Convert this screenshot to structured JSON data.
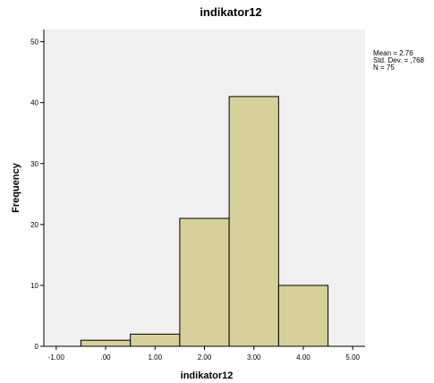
{
  "chart_data": {
    "type": "bar",
    "title": "indikator12",
    "xlabel": "indikator12",
    "ylabel": "Frequency",
    "xlim": [
      -1.25,
      5.25
    ],
    "ylim": [
      0,
      52
    ],
    "x_ticks": [
      -1,
      0,
      1,
      2,
      3,
      4,
      5
    ],
    "x_tick_labels": [
      "-1.00",
      ".00",
      "1.00",
      "2.00",
      "3.00",
      "4.00",
      "5.00"
    ],
    "y_ticks": [
      0,
      10,
      20,
      30,
      40,
      50
    ],
    "y_tick_labels": [
      "0",
      "10",
      "20",
      "30",
      "40",
      "50"
    ],
    "bin_width": 1,
    "bins": [
      {
        "center": 0,
        "value": 1
      },
      {
        "center": 1,
        "value": 2
      },
      {
        "center": 2,
        "value": 21
      },
      {
        "center": 3,
        "value": 41
      },
      {
        "center": 4,
        "value": 10
      }
    ],
    "stats": {
      "mean": "Mean = 2.76",
      "std_dev": "Std. Dev. = ,768",
      "n": "N = 75"
    },
    "colors": {
      "bar_fill": "#d6d09b",
      "bar_stroke": "#000000",
      "plot_background": "#f0f0f0"
    },
    "grid": false
  }
}
